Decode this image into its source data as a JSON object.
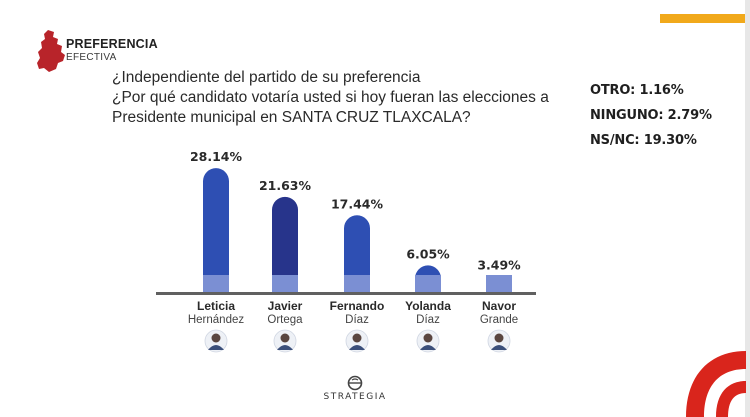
{
  "logo": {
    "line1": "PREFERENCIA",
    "line2": "EFECTIVA"
  },
  "question": {
    "line1": "¿Independiente del partido de su preferencia",
    "line2": "¿Por qué candidato votaría usted si hoy fueran las elecciones a",
    "line3": "Presidente municipal en SANTA CRUZ TLAXCALA?"
  },
  "others": [
    {
      "label": "OTRO: 1.16%"
    },
    {
      "label": "NINGUNO: 2.79%"
    },
    {
      "label": "NS/NC: 19.30%"
    }
  ],
  "brand": {
    "name": "STRATEGIA"
  },
  "colors": {
    "accent": "#f1a91b",
    "bar_light": "#2e4fb3",
    "bar_dark": "#27348b",
    "bar_base": "#7b8fd3",
    "axis": "#606060",
    "corner": "#d9251c"
  },
  "chart_data": {
    "type": "bar",
    "unit": "%",
    "categories": [
      {
        "first": "Leticia",
        "last": "Hernández"
      },
      {
        "first": "Javier",
        "last": "Ortega"
      },
      {
        "first": "Fernando",
        "last": "Díaz"
      },
      {
        "first": "Yolanda",
        "last": "Díaz"
      },
      {
        "first": "Navor",
        "last": "Grande"
      }
    ],
    "values": [
      28.14,
      21.63,
      17.44,
      6.05,
      3.49
    ],
    "value_labels": [
      "28.14%",
      "21.63%",
      "17.44%",
      "6.05%",
      "3.49%"
    ],
    "grid": false,
    "legend": "none"
  }
}
